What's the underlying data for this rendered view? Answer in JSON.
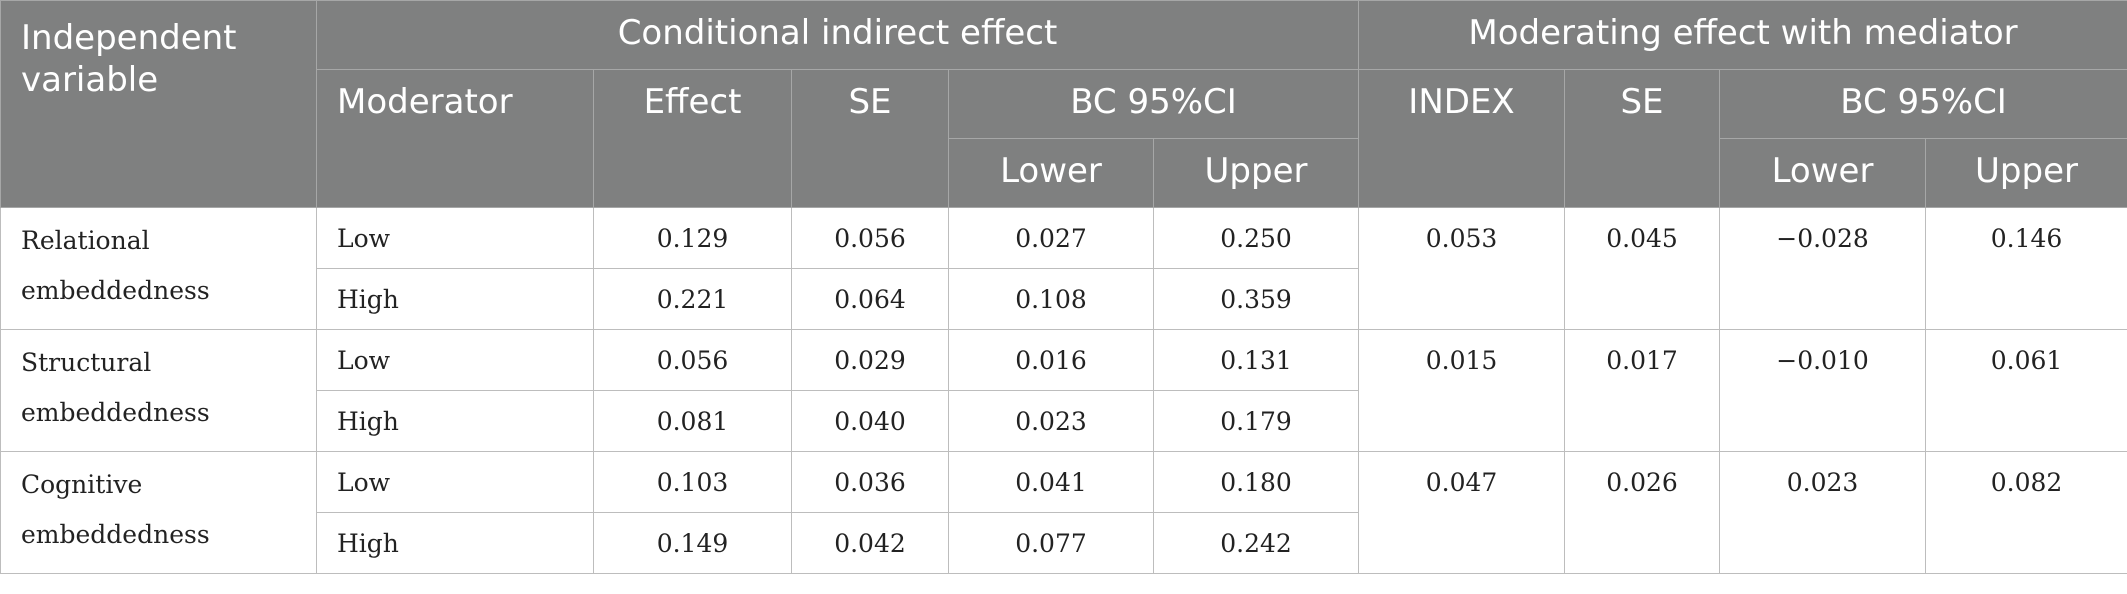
{
  "header": {
    "independent_variable": "Independent variable",
    "conditional_indirect_effect": "Conditional indirect effect",
    "moderating_effect": "Moderating effect with mediator",
    "moderator": "Moderator",
    "effect": "Effect",
    "se": "SE",
    "bc95ci": "BC 95%CI",
    "lower": "Lower",
    "upper": "Upper",
    "index": "INDEX"
  },
  "groups": [
    {
      "independent_variable": "Relational embeddedness",
      "rows": [
        {
          "moderator": "Low",
          "effect": "0.129",
          "se": "0.056",
          "lower": "0.027",
          "upper": "0.250"
        },
        {
          "moderator": "High",
          "effect": "0.221",
          "se": "0.064",
          "lower": "0.108",
          "upper": "0.359"
        }
      ],
      "index": "0.053",
      "index_se": "0.045",
      "index_lower": "−0.028",
      "index_upper": "0.146"
    },
    {
      "independent_variable": "Structural embeddedness",
      "rows": [
        {
          "moderator": "Low",
          "effect": "0.056",
          "se": "0.029",
          "lower": "0.016",
          "upper": "0.131"
        },
        {
          "moderator": "High",
          "effect": "0.081",
          "se": "0.040",
          "lower": "0.023",
          "upper": "0.179"
        }
      ],
      "index": "0.015",
      "index_se": "0.017",
      "index_lower": "−0.010",
      "index_upper": "0.061"
    },
    {
      "independent_variable": "Cognitive embeddedness",
      "rows": [
        {
          "moderator": "Low",
          "effect": "0.103",
          "se": "0.036",
          "lower": "0.041",
          "upper": "0.180"
        },
        {
          "moderator": "High",
          "effect": "0.149",
          "se": "0.042",
          "lower": "0.077",
          "upper": "0.242"
        }
      ],
      "index": "0.047",
      "index_se": "0.026",
      "index_lower": "0.023",
      "index_upper": "0.082"
    }
  ],
  "colors": {
    "header_bg": "#7f8080",
    "header_text": "#ffffff",
    "grid": "#bdbdbd"
  }
}
